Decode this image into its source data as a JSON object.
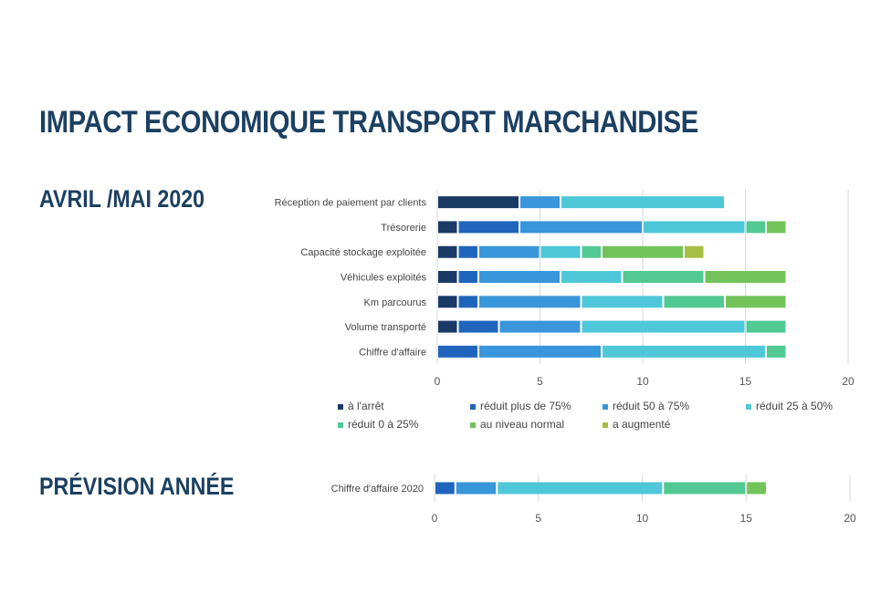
{
  "page": {
    "title": "IMPACT ECONOMIQUE TRANSPORT MARCHANDISE",
    "section1_title": "AVRIL /MAI 2020",
    "section2_title": "PRÉVISION ANNÉE"
  },
  "legend": [
    {
      "name": "à l'arrêt",
      "color": "#1a3a66"
    },
    {
      "name": "réduit plus de 75%",
      "color": "#1f65bd"
    },
    {
      "name": "réduit 50 à 75%",
      "color": "#3a96da"
    },
    {
      "name": "réduit 25 à 50%",
      "color": "#4ec8d8"
    },
    {
      "name": "réduit 0 à 25%",
      "color": "#52c993"
    },
    {
      "name": "au niveau normal",
      "color": "#72c45a"
    },
    {
      "name": "a augmenté",
      "color": "#a8be45"
    }
  ],
  "chart_data": [
    {
      "type": "bar",
      "orientation": "horizontal",
      "stacked": true,
      "title": "AVRIL /MAI 2020",
      "categories": [
        "Réception de paiement par clients",
        "Trésorerie",
        "Capacité stockage exploitée",
        "Véhicules exploités",
        "Km parcourus",
        "Volume transporté",
        "Chiffre d'affaire"
      ],
      "series": [
        {
          "name": "à l'arrêt",
          "values": [
            4,
            1,
            1,
            1,
            1,
            1,
            0
          ]
        },
        {
          "name": "réduit plus de 75%",
          "values": [
            0,
            3,
            1,
            1,
            1,
            2,
            2
          ]
        },
        {
          "name": "réduit 50 à 75%",
          "values": [
            2,
            6,
            3,
            4,
            5,
            4,
            6
          ]
        },
        {
          "name": "réduit 25 à 50%",
          "values": [
            8,
            5,
            2,
            3,
            4,
            8,
            8
          ]
        },
        {
          "name": "réduit 0 à 25%",
          "values": [
            0,
            1,
            1,
            4,
            3,
            2,
            1
          ]
        },
        {
          "name": "au niveau normal",
          "values": [
            0,
            1,
            4,
            4,
            3,
            0,
            0
          ]
        },
        {
          "name": "a augmenté",
          "values": [
            0,
            0,
            1,
            0,
            0,
            0,
            0
          ]
        }
      ],
      "xlim": [
        0,
        20
      ],
      "xticks": [
        "0",
        "5",
        "10",
        "15",
        "20"
      ],
      "grid": true,
      "legend_position": "bottom"
    },
    {
      "type": "bar",
      "orientation": "horizontal",
      "stacked": true,
      "title": "PRÉVISION ANNÉE",
      "categories": [
        "Chiffre d'affaire 2020"
      ],
      "series": [
        {
          "name": "à l'arrêt",
          "values": [
            0
          ]
        },
        {
          "name": "réduit plus de 75%",
          "values": [
            1
          ]
        },
        {
          "name": "réduit 50 à 75%",
          "values": [
            2
          ]
        },
        {
          "name": "réduit 25 à 50%",
          "values": [
            8
          ]
        },
        {
          "name": "réduit 0 à 25%",
          "values": [
            4
          ]
        },
        {
          "name": "au niveau normal",
          "values": [
            1
          ]
        },
        {
          "name": "a augmenté",
          "values": [
            0
          ]
        }
      ],
      "xlim": [
        0,
        20
      ],
      "xticks": [
        "0",
        "5",
        "10",
        "15",
        "20"
      ],
      "grid": true
    }
  ]
}
